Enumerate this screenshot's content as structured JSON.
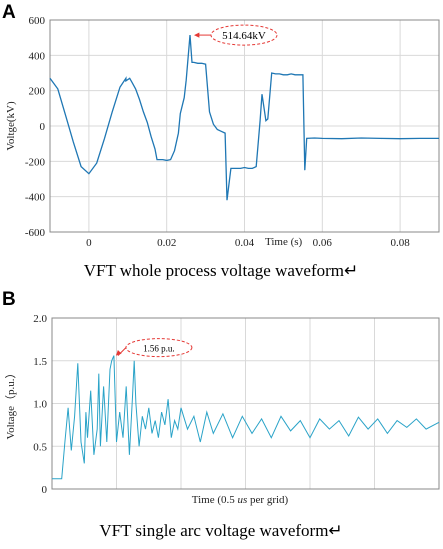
{
  "chart_data": [
    {
      "type": "line",
      "panel": "A",
      "caption": "VFT whole process voltage waveform↵",
      "xlabel": "Time (s)",
      "ylabel": "Voltge(kV)",
      "xlim": [
        -0.01,
        0.09
      ],
      "ylim": [
        -600,
        600
      ],
      "xticks": [
        "0",
        "0.02",
        "0.04",
        "0.06",
        "0.08"
      ],
      "xtick_values": [
        0,
        0.02,
        0.04,
        0.06,
        0.08
      ],
      "yticks": [
        "600",
        "400",
        "200",
        "0",
        "-200",
        "-400",
        "-600"
      ],
      "ytick_values": [
        600,
        400,
        200,
        0,
        -200,
        -400,
        -600
      ],
      "grid": true,
      "color": "#1f77b4",
      "annotation": {
        "text": "514.64kV",
        "x": 0.0265,
        "y": 514.64
      },
      "series": [
        {
          "x": [
            -0.01,
            -0.008,
            -0.006,
            -0.004,
            -0.002,
            0.0,
            0.002,
            0.004,
            0.006,
            0.008,
            0.0095,
            0.0095,
            0.0105,
            0.011,
            0.012,
            0.013,
            0.014,
            0.015,
            0.016,
            0.017,
            0.0175,
            0.018,
            0.019,
            0.02,
            0.021,
            0.022,
            0.023,
            0.0235,
            0.0245,
            0.025,
            0.026,
            0.0265,
            0.027,
            0.028,
            0.029,
            0.03,
            0.031,
            0.032,
            0.033,
            0.034,
            0.035,
            0.0355,
            0.0365,
            0.037,
            0.038,
            0.039,
            0.04,
            0.041,
            0.042,
            0.043,
            0.044,
            0.0445,
            0.0455,
            0.046,
            0.047,
            0.048,
            0.049,
            0.05,
            0.051,
            0.052,
            0.053,
            0.054,
            0.055,
            0.0555,
            0.056,
            0.058,
            0.06,
            0.065,
            0.07,
            0.075,
            0.08,
            0.085,
            0.09
          ],
          "y": [
            270,
            210,
            60,
            -90,
            -230,
            -270,
            -210,
            -70,
            80,
            220,
            270,
            255,
            270,
            250,
            210,
            150,
            80,
            20,
            -60,
            -130,
            -190,
            -190,
            -190,
            -195,
            -190,
            -140,
            -40,
            70,
            160,
            260,
            514.64,
            360,
            360,
            355,
            355,
            350,
            80,
            10,
            -20,
            -30,
            -40,
            -420,
            -240,
            -240,
            -240,
            -240,
            -235,
            -240,
            -240,
            -230,
            30,
            180,
            30,
            40,
            300,
            295,
            295,
            290,
            290,
            295,
            290,
            290,
            290,
            -250,
            -70,
            -68,
            -70,
            -72,
            -68,
            -70,
            -72,
            -70,
            -70
          ]
        }
      ]
    },
    {
      "type": "line",
      "panel": "B",
      "caption": "VFT single arc voltage waveform↵",
      "xlabel": "Time (0.5 us per grid)",
      "xlabel_parts": [
        "Time (0.5 ",
        "us",
        " per grid)"
      ],
      "ylabel": "Voltage（p.u.）",
      "xlim": [
        0,
        12
      ],
      "ylim": [
        0,
        2.0
      ],
      "yticks": [
        "2.0",
        "1.5",
        "1.0",
        "0.5",
        "0"
      ],
      "ytick_values": [
        2.0,
        1.5,
        1.0,
        0.5,
        0
      ],
      "x_grid_count": 6,
      "grid": true,
      "color": "#2aa3c8",
      "annotation": {
        "text": "1.56 p.u.",
        "x": 1.92,
        "y": 1.56
      },
      "series": [
        {
          "x": [
            0.0,
            0.15,
            0.3,
            0.4,
            0.5,
            0.55,
            0.6,
            0.7,
            0.8,
            0.9,
            1.0,
            1.05,
            1.1,
            1.2,
            1.3,
            1.4,
            1.45,
            1.5,
            1.6,
            1.7,
            1.8,
            1.85,
            1.92,
            2.0,
            2.1,
            2.2,
            2.3,
            2.4,
            2.5,
            2.55,
            2.6,
            2.7,
            2.8,
            2.9,
            3.0,
            3.1,
            3.2,
            3.3,
            3.4,
            3.5,
            3.6,
            3.7,
            3.8,
            3.9,
            4.0,
            4.2,
            4.4,
            4.6,
            4.8,
            5.0,
            5.3,
            5.6,
            5.9,
            6.2,
            6.5,
            6.8,
            7.1,
            7.4,
            7.7,
            8.0,
            8.3,
            8.6,
            8.9,
            9.2,
            9.5,
            9.8,
            10.1,
            10.4,
            10.7,
            11.0,
            11.3,
            11.6,
            12.0
          ],
          "y": [
            0.12,
            0.12,
            0.12,
            0.55,
            0.95,
            0.7,
            0.45,
            0.85,
            1.47,
            0.55,
            0.3,
            0.9,
            0.6,
            1.15,
            0.4,
            0.7,
            1.35,
            0.5,
            1.2,
            0.55,
            1.4,
            1.5,
            1.56,
            0.55,
            0.9,
            0.6,
            1.2,
            0.4,
            1.1,
            1.5,
            1.0,
            0.5,
            0.85,
            0.7,
            0.95,
            0.65,
            0.8,
            0.6,
            0.9,
            0.75,
            1.05,
            0.6,
            0.8,
            0.7,
            0.95,
            0.7,
            0.85,
            0.55,
            0.9,
            0.65,
            0.88,
            0.6,
            0.85,
            0.65,
            0.82,
            0.6,
            0.85,
            0.68,
            0.8,
            0.6,
            0.82,
            0.7,
            0.8,
            0.62,
            0.84,
            0.7,
            0.82,
            0.65,
            0.8,
            0.72,
            0.82,
            0.7,
            0.78
          ]
        }
      ]
    }
  ]
}
